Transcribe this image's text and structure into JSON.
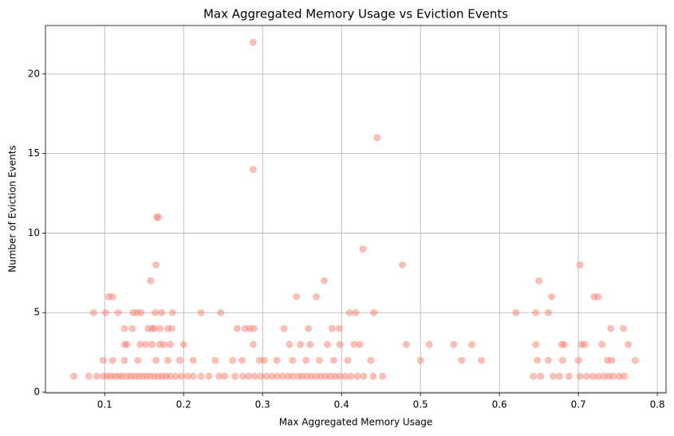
{
  "chart_data": {
    "type": "scatter",
    "title": "Max Aggregated Memory Usage vs Eviction Events",
    "x_label": "Max Aggregated Memory Usage",
    "y_label": "Number of Eviction Events",
    "xlim": [
      0.025,
      0.811
    ],
    "ylim": [
      -0.05,
      23.05
    ],
    "xticks": [
      0.1,
      0.2,
      0.3,
      0.4,
      0.5,
      0.6,
      0.7,
      0.8
    ],
    "yticks": [
      0,
      5,
      10,
      15,
      20
    ],
    "grid": true,
    "color": "#fa8072",
    "x": [
      0.288,
      0.445,
      0.288,
      0.166,
      0.168,
      0.427,
      0.165,
      0.477,
      0.702,
      0.158,
      0.378,
      0.65,
      0.105,
      0.11,
      0.343,
      0.368,
      0.666,
      0.72,
      0.725,
      0.086,
      0.101,
      0.117,
      0.136,
      0.141,
      0.146,
      0.164,
      0.172,
      0.186,
      0.222,
      0.247,
      0.41,
      0.418,
      0.441,
      0.621,
      0.646,
      0.662,
      0.125,
      0.135,
      0.155,
      0.16,
      0.163,
      0.17,
      0.18,
      0.185,
      0.268,
      0.278,
      0.284,
      0.289,
      0.327,
      0.358,
      0.388,
      0.397,
      0.741,
      0.757,
      0.125,
      0.128,
      0.145,
      0.152,
      0.16,
      0.17,
      0.175,
      0.183,
      0.2,
      0.288,
      0.334,
      0.348,
      0.36,
      0.382,
      0.398,
      0.416,
      0.423,
      0.482,
      0.511,
      0.542,
      0.565,
      0.646,
      0.679,
      0.682,
      0.704,
      0.708,
      0.73,
      0.763,
      0.098,
      0.11,
      0.125,
      0.142,
      0.165,
      0.18,
      0.195,
      0.212,
      0.24,
      0.262,
      0.274,
      0.296,
      0.302,
      0.318,
      0.338,
      0.355,
      0.372,
      0.39,
      0.408,
      0.437,
      0.5,
      0.552,
      0.577,
      0.648,
      0.662,
      0.68,
      0.7,
      0.737,
      0.742,
      0.772,
      0.061,
      0.08,
      0.09,
      0.098,
      0.103,
      0.108,
      0.113,
      0.118,
      0.122,
      0.128,
      0.133,
      0.138,
      0.143,
      0.148,
      0.153,
      0.158,
      0.163,
      0.168,
      0.173,
      0.178,
      0.183,
      0.19,
      0.197,
      0.205,
      0.212,
      0.222,
      0.232,
      0.245,
      0.252,
      0.265,
      0.275,
      0.282,
      0.29,
      0.298,
      0.305,
      0.312,
      0.318,
      0.325,
      0.332,
      0.338,
      0.345,
      0.35,
      0.356,
      0.362,
      0.368,
      0.374,
      0.38,
      0.386,
      0.392,
      0.398,
      0.405,
      0.412,
      0.42,
      0.428,
      0.44,
      0.452,
      0.643,
      0.652,
      0.668,
      0.676,
      0.688,
      0.702,
      0.71,
      0.718,
      0.725,
      0.732,
      0.738,
      0.744,
      0.752,
      0.758
    ],
    "y": [
      22,
      16,
      14,
      11,
      11,
      9,
      8,
      8,
      8,
      7,
      7,
      7,
      6,
      6,
      6,
      6,
      6,
      6,
      6,
      5,
      5,
      5,
      5,
      5,
      5,
      5,
      5,
      5,
      5,
      5,
      5,
      5,
      5,
      5,
      5,
      5,
      4,
      4,
      4,
      4,
      4,
      4,
      4,
      4,
      4,
      4,
      4,
      4,
      4,
      4,
      4,
      4,
      4,
      4,
      3,
      3,
      3,
      3,
      3,
      3,
      3,
      3,
      3,
      3,
      3,
      3,
      3,
      3,
      3,
      3,
      3,
      3,
      3,
      3,
      3,
      3,
      3,
      3,
      3,
      3,
      3,
      3,
      2,
      2,
      2,
      2,
      2,
      2,
      2,
      2,
      2,
      2,
      2,
      2,
      2,
      2,
      2,
      2,
      2,
      2,
      2,
      2,
      2,
      2,
      2,
      2,
      2,
      2,
      2,
      2,
      2,
      2,
      1,
      1,
      1,
      1,
      1,
      1,
      1,
      1,
      1,
      1,
      1,
      1,
      1,
      1,
      1,
      1,
      1,
      1,
      1,
      1,
      1,
      1,
      1,
      1,
      1,
      1,
      1,
      1,
      1,
      1,
      1,
      1,
      1,
      1,
      1,
      1,
      1,
      1,
      1,
      1,
      1,
      1,
      1,
      1,
      1,
      1,
      1,
      1,
      1,
      1,
      1,
      1,
      1,
      1,
      1,
      1,
      1,
      1,
      1,
      1,
      1,
      1,
      1,
      1,
      1,
      1,
      1,
      1,
      1,
      1
    ]
  }
}
